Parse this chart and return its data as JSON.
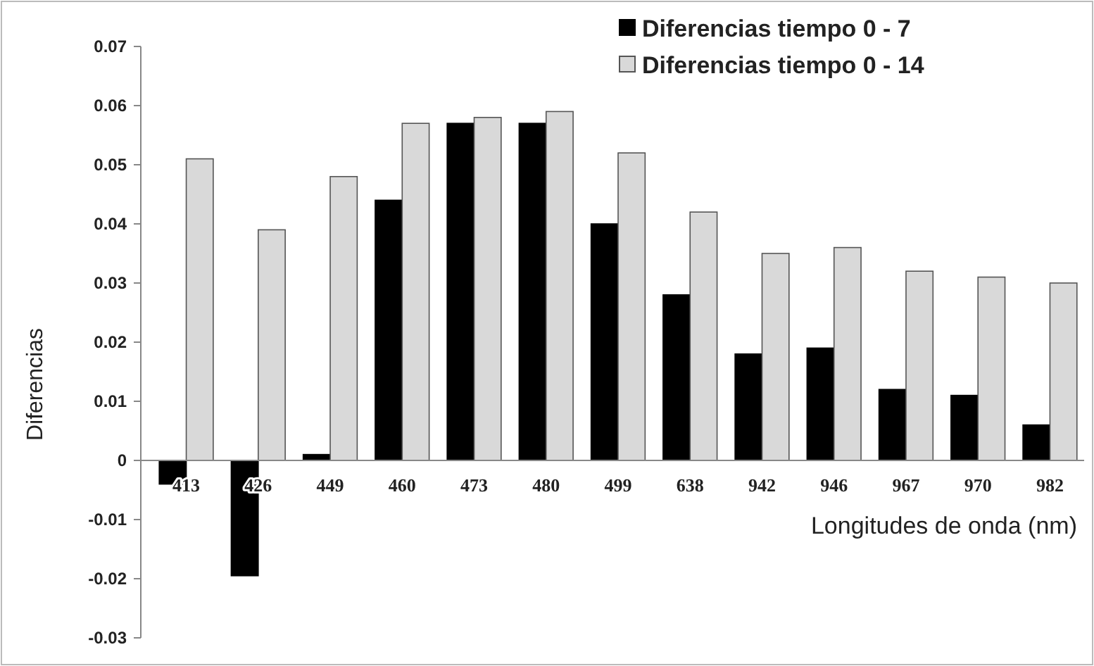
{
  "chart_data": {
    "type": "bar",
    "xlabel": "Longitudes de onda (nm)",
    "ylabel": "Diferencias",
    "categories": [
      "413",
      "426",
      "449",
      "460",
      "473",
      "480",
      "499",
      "638",
      "942",
      "946",
      "967",
      "970",
      "982"
    ],
    "series": [
      {
        "name": "Diferencias tiempo 0 - 7",
        "color": "#000000",
        "values": [
          -0.004,
          -0.0195,
          0.001,
          0.044,
          0.057,
          0.057,
          0.04,
          0.028,
          0.018,
          0.019,
          0.012,
          0.011,
          0.006
        ]
      },
      {
        "name": "Diferencias tiempo 0 - 14",
        "color": "#d9d9d9",
        "values": [
          0.051,
          0.039,
          0.048,
          0.057,
          0.058,
          0.059,
          0.052,
          0.042,
          0.035,
          0.036,
          0.032,
          0.031,
          0.03
        ]
      }
    ],
    "ylim": [
      -0.03,
      0.07
    ],
    "yticks": [
      -0.03,
      -0.02,
      -0.01,
      0,
      0.01,
      0.02,
      0.03,
      0.04,
      0.05,
      0.06,
      0.07
    ],
    "grid": false,
    "legend": "top right"
  }
}
